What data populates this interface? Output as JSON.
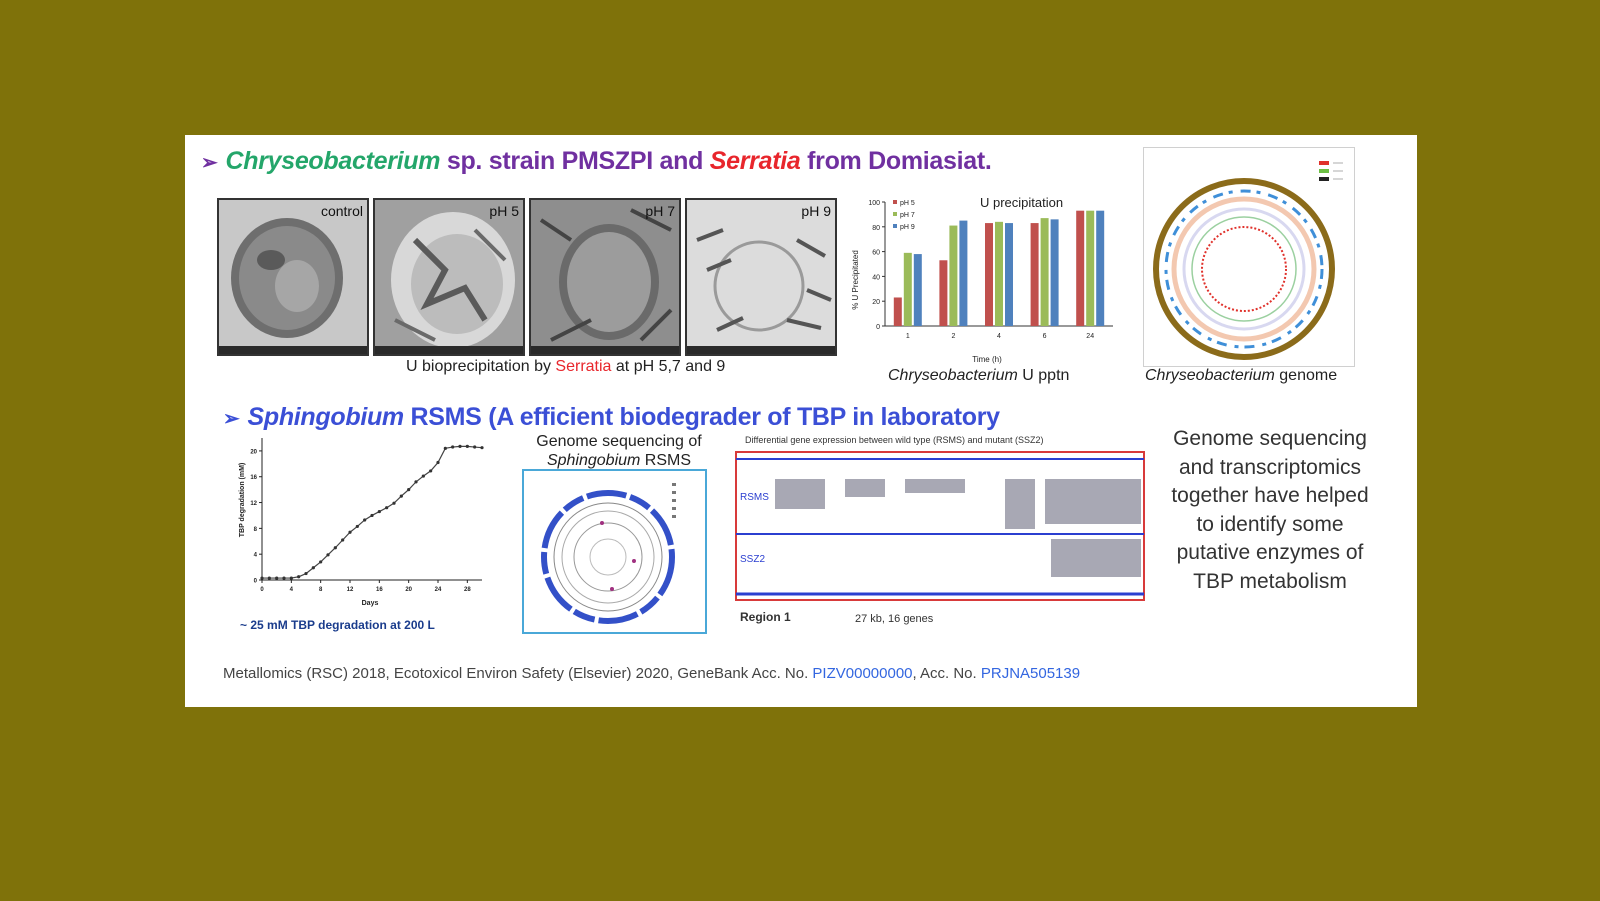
{
  "heading1": {
    "arrow": "➢",
    "genus1": "Chryseobacterium",
    "mid": " sp. strain PMSZPI and ",
    "genus2": "Serratia",
    "tail": " from Domiasiat."
  },
  "tem_panels": [
    {
      "label": "control"
    },
    {
      "label": "pH 5"
    },
    {
      "label": "pH 7"
    },
    {
      "label": "pH 9"
    }
  ],
  "tem_caption": {
    "pre": "U bioprecipitation by ",
    "genus": "Serratia",
    "post": " at pH 5,7 and 9"
  },
  "bar_caption": {
    "genus": "Chryseobacterium",
    "post": " U pptn"
  },
  "genome_caption": {
    "genus": "Chryseobacterium",
    "post": " genome"
  },
  "heading2": {
    "arrow": "➢",
    "genus": "Sphingobium",
    "tail": " RSMS  (A efficient biodegrader of TBP in laboratory"
  },
  "degradation_note": "~ 25 mM TBP degradation at 200 L",
  "genome_seq_caption": {
    "line1": "Genome sequencing of",
    "genus": "Sphingobium",
    "post": " RSMS"
  },
  "expression": {
    "title": "Differential gene expression between wild type (RSMS) and mutant (SSZ2)",
    "track1": "RSMS",
    "track2": "SSZ2",
    "region": "Region 1",
    "region_info": "27 kb,  16 genes"
  },
  "side_text": "Genome sequencing and transcriptomics together have helped to identify some putative enzymes of TBP metabolism",
  "footer": {
    "text1": "Metallomics (RSC) 2018, Ecotoxicol Environ Safety (Elsevier) 2020, GeneBank Acc. No. ",
    "link1": "PIZV00000000",
    "text2": ", Acc. No. ",
    "link2": "PRJNA505139"
  },
  "colors": {
    "background": "#7f720a",
    "slide": "#ffffff",
    "title_purple": "#7030a0",
    "green": "#24a66a",
    "red": "#e8262c",
    "blue": "#3b4fd6",
    "link": "#3366e0"
  },
  "chart_data": [
    {
      "type": "bar",
      "title": "U precipitation",
      "xlabel": "Time (h)",
      "ylabel": "% U Precipitated",
      "ylim": [
        0,
        100
      ],
      "categories": [
        "1",
        "2",
        "4",
        "6",
        "24"
      ],
      "series": [
        {
          "name": "pH 5",
          "color": "#c0504d",
          "values": [
            23,
            53,
            83,
            83,
            93
          ]
        },
        {
          "name": "pH 7",
          "color": "#9bbb59",
          "values": [
            59,
            81,
            84,
            87,
            93
          ]
        },
        {
          "name": "pH 9",
          "color": "#4f81bd",
          "values": [
            58,
            85,
            83,
            86,
            93
          ]
        }
      ],
      "legend": "top-left",
      "yticks": [
        0,
        20,
        40,
        60,
        80,
        100
      ]
    },
    {
      "type": "line",
      "xlabel": "Days",
      "ylabel": "TBP degradation (mM)",
      "xlim": [
        0,
        30
      ],
      "ylim": [
        0,
        22
      ],
      "xticks": [
        0,
        4,
        8,
        12,
        16,
        20,
        24,
        28
      ],
      "yticks": [
        0,
        4,
        8,
        12,
        16,
        20
      ],
      "series": [
        {
          "x": [
            0,
            1,
            2,
            3,
            4,
            5,
            6,
            7,
            8,
            9,
            10,
            11,
            12,
            13,
            14,
            15,
            16,
            17,
            18,
            19,
            20,
            21,
            22,
            23,
            24,
            25,
            26,
            27,
            28,
            29,
            30
          ],
          "y": [
            0.3,
            0.3,
            0.3,
            0.3,
            0.3,
            0.5,
            1,
            1.9,
            2.8,
            3.9,
            5,
            6.2,
            7.4,
            8.3,
            9.3,
            10,
            10.6,
            11.2,
            11.9,
            13,
            14,
            15.2,
            16.1,
            16.9,
            18.2,
            20.4,
            20.6,
            20.7,
            20.7,
            20.6,
            20.5
          ]
        }
      ]
    }
  ]
}
